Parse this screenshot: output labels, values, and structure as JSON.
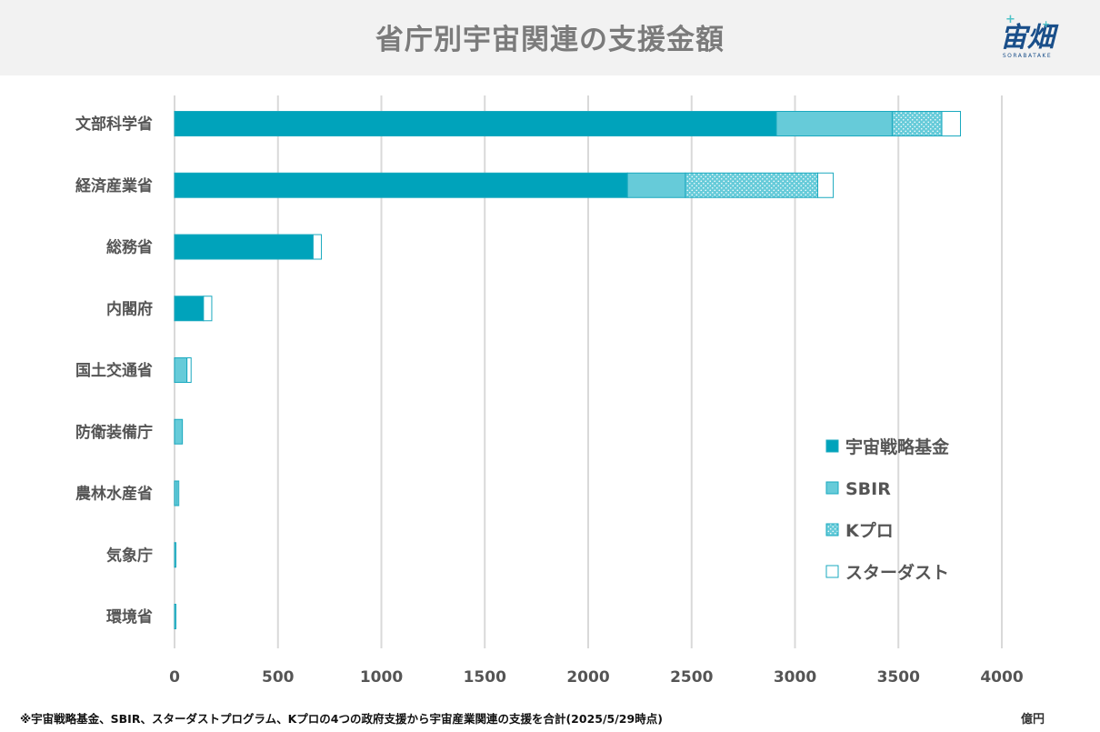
{
  "header": {
    "title": "省庁別宇宙関連の支援金額",
    "logo_main": "宙畑",
    "logo_sub": "SORABATAKE",
    "logo_accent": "+"
  },
  "footnote": "※宇宙戦略基金、SBIR、スターダストプログラム、Kプロの4つの政府支援から宇宙産業関連の支援を合計(2025/5/29時点)",
  "unit": "億円",
  "chart_data": {
    "type": "bar",
    "orientation": "horizontal",
    "stacked": true,
    "title": "省庁別宇宙関連の支援金額",
    "categories": [
      "文部科学省",
      "経済産業省",
      "総務省",
      "内閣府",
      "国土交通省",
      "防衛装備庁",
      "農林水産省",
      "気象庁",
      "環境省"
    ],
    "series": [
      {
        "name": "宇宙戦略基金",
        "color": "#00a3bb",
        "pattern": "solid",
        "values": [
          2910,
          2190,
          670,
          140,
          0,
          0,
          0,
          0,
          0
        ]
      },
      {
        "name": "SBIR",
        "color": "#66cbd9",
        "pattern": "solid",
        "values": [
          560,
          280,
          0,
          0,
          60,
          38,
          14,
          6,
          6
        ]
      },
      {
        "name": "Kプロ",
        "color": "#66cbd9",
        "pattern": "dotted",
        "values": [
          240,
          640,
          0,
          0,
          0,
          0,
          0,
          0,
          0
        ]
      },
      {
        "name": "スターダスト",
        "color": "#ffffff",
        "pattern": "outline",
        "values": [
          90,
          75,
          40,
          40,
          20,
          0,
          5,
          0,
          0
        ]
      }
    ],
    "xlim": [
      0,
      4000
    ],
    "xticks": [
      0,
      500,
      1000,
      1500,
      2000,
      2500,
      3000,
      3500,
      4000
    ],
    "grid": true,
    "legend_position": "lower-right"
  }
}
